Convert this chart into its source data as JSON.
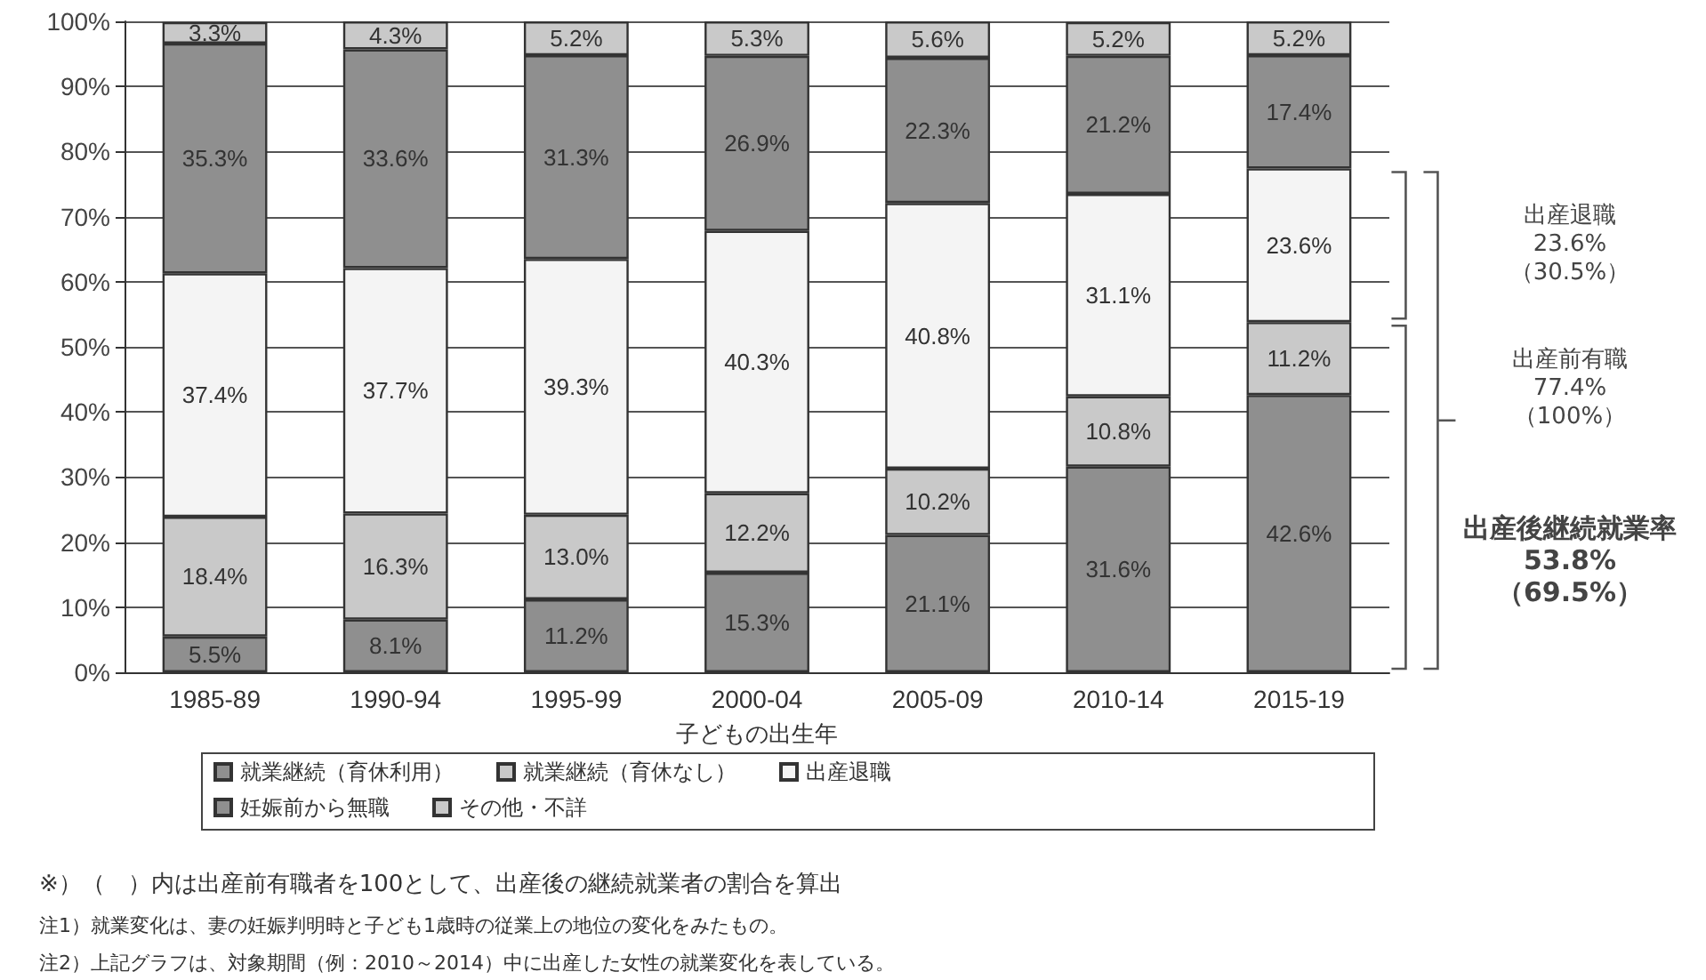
{
  "chart_data": {
    "type": "bar",
    "stacked": true,
    "xlabel": "子どもの出生年",
    "categories": [
      "1985-89",
      "1990-94",
      "1995-99",
      "2000-04",
      "2005-09",
      "2010-14",
      "2015-19"
    ],
    "series": [
      {
        "name": "就業継続（育休利用）",
        "color": "#8f8f8f",
        "values": [
          5.5,
          8.1,
          11.2,
          15.3,
          21.1,
          31.6,
          42.6
        ],
        "value_labels": [
          "5.5%",
          "8.1%",
          "11.2%",
          "15.3%",
          "21.1%",
          "31.6%",
          "42.6%"
        ]
      },
      {
        "name": "就業継続（育休なし）",
        "color": "#c9c9c9",
        "values": [
          18.4,
          16.3,
          13.0,
          12.2,
          10.2,
          10.8,
          11.2
        ],
        "value_labels": [
          "18.4%",
          "16.3%",
          "13.0%",
          "12.2%",
          "10.2%",
          "10.8%",
          "11.2%"
        ]
      },
      {
        "name": "出産退職",
        "color": "#f4f4f4",
        "values": [
          37.4,
          37.7,
          39.3,
          40.3,
          40.8,
          31.1,
          23.6
        ],
        "value_labels": [
          "37.4%",
          "37.7%",
          "39.3%",
          "40.3%",
          "40.8%",
          "31.1%",
          "23.6%"
        ]
      },
      {
        "name": "妊娠前から無職",
        "color": "#8f8f8f",
        "values": [
          35.3,
          33.6,
          31.3,
          26.9,
          22.3,
          21.2,
          17.4
        ],
        "value_labels": [
          "35.3%",
          "33.6%",
          "31.3%",
          "26.9%",
          "22.3%",
          "21.2%",
          "17.4%"
        ]
      },
      {
        "name": "その他・不詳",
        "color": "#c9c9c9",
        "values": [
          3.3,
          4.3,
          5.2,
          5.3,
          5.6,
          5.2,
          5.2
        ],
        "value_labels": [
          "3.3%",
          "4.3%",
          "5.2%",
          "5.3%",
          "5.6%",
          "5.2%",
          "5.2%"
        ]
      }
    ],
    "ylim": [
      0,
      100
    ],
    "yticks": [
      {
        "value": 0,
        "label": "0%"
      },
      {
        "value": 10,
        "label": "10%"
      },
      {
        "value": 20,
        "label": "20%"
      },
      {
        "value": 30,
        "label": "30%"
      },
      {
        "value": 40,
        "label": "40%"
      },
      {
        "value": 50,
        "label": "50%"
      },
      {
        "value": 60,
        "label": "60%"
      },
      {
        "value": 70,
        "label": "70%"
      },
      {
        "value": 80,
        "label": "80%"
      },
      {
        "value": 90,
        "label": "90%"
      },
      {
        "value": 100,
        "label": "100%"
      }
    ],
    "grid": "y",
    "legend": "bottom",
    "annotations": [
      "出産退職\n23.6%\n（30.5%）",
      "出産前有職\n77.4%\n（100%）",
      "出産後継続就業率\n53.8%\n（69.5%）",
      "※）（　）内は出産前有職者を100として、出産後の継続就業者の割合を算出",
      "注1）就業変化は、妻の妊娠判明時と子ども1歳時の従業上の地位の変化をみたもの。",
      "注2）上記グラフは、対象期間（例：2010～2014）中に出産した女性の就業変化を表している。"
    ]
  }
}
